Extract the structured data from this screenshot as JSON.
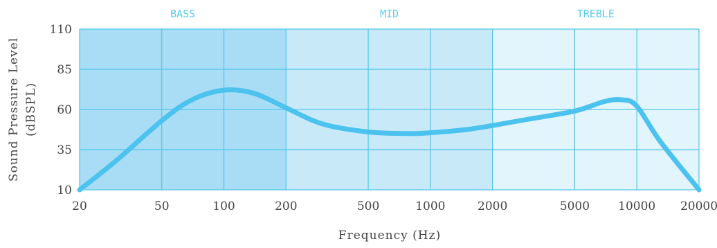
{
  "chart_data": {
    "type": "line",
    "title": "",
    "xlabel": "Frequency (Hz)",
    "ylabel": [
      "Sound Pressure Level",
      "(dBSPL)"
    ],
    "x_scale": "log",
    "xlim": [
      20,
      20000
    ],
    "ylim": [
      10,
      110
    ],
    "x_ticks": [
      20,
      50,
      100,
      200,
      500,
      1000,
      2000,
      5000,
      10000,
      20000
    ],
    "x_tick_labels": [
      "20",
      "50",
      "100",
      "200",
      "500",
      "1000",
      "2000",
      "5000",
      "10000",
      "20000"
    ],
    "y_ticks": [
      10,
      35,
      60,
      85,
      110
    ],
    "y_tick_labels": [
      "10",
      "35",
      "60",
      "85",
      "110"
    ],
    "grid": true,
    "bands": [
      {
        "name": "BASS",
        "range": [
          20,
          200
        ],
        "color": "#a8ddf5"
      },
      {
        "name": "MID",
        "range": [
          200,
          2000
        ],
        "color": "#c8e9f8"
      },
      {
        "name": "TREBLE",
        "range": [
          2000,
          20000
        ],
        "color": "#e2f4fc"
      }
    ],
    "series": [
      {
        "color": "#4cc2ef",
        "x": [
          20,
          30,
          50,
          70,
          100,
          140,
          200,
          300,
          500,
          800,
          1000,
          1500,
          2000,
          3000,
          5000,
          7000,
          8500,
          10000,
          13000,
          20000
        ],
        "y": [
          10,
          28,
          53,
          66,
          72,
          70,
          61,
          51,
          46,
          45,
          45.5,
          47.5,
          50,
          54,
          59,
          65,
          66,
          62,
          40,
          10
        ]
      }
    ]
  },
  "colors": {
    "grid": "#4fc6ea",
    "band_label": "#56cdee",
    "text": "#444444"
  }
}
